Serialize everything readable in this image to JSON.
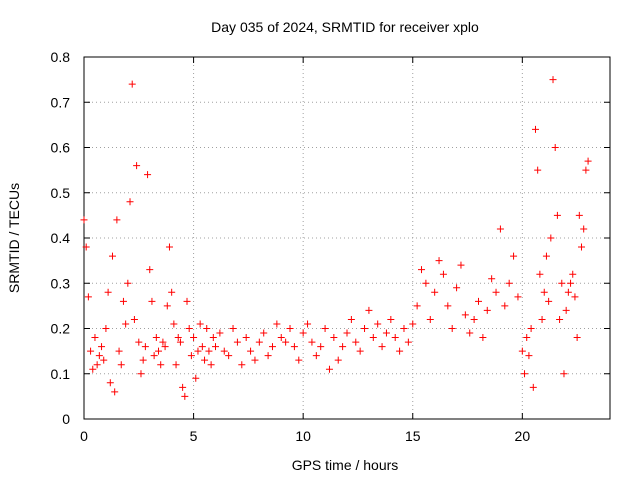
{
  "chart_data": {
    "type": "scatter",
    "title": "Day 035 of 2024, SRMTID for receiver xplo",
    "xlabel": "GPS time / hours",
    "ylabel": "SRMTID / TECUs",
    "xlim": [
      0,
      24
    ],
    "ylim": [
      0,
      0.8
    ],
    "xticks": [
      0,
      5,
      10,
      15,
      20
    ],
    "xtick_labels": [
      "0",
      "5",
      "10",
      "15",
      "20"
    ],
    "yticks": [
      0,
      0.1,
      0.2,
      0.3,
      0.4,
      0.5,
      0.6,
      0.7,
      0.8
    ],
    "ytick_labels": [
      "0",
      "0.1",
      "0.2",
      "0.3",
      "0.4",
      "0.5",
      "0.6",
      "0.7",
      "0.8"
    ],
    "grid": true,
    "marker": "plus",
    "color": "#ff0000",
    "series": [
      {
        "name": "SRMTID",
        "x": [
          0.0,
          0.1,
          0.2,
          0.3,
          0.4,
          0.5,
          0.6,
          0.7,
          0.8,
          0.9,
          1.0,
          1.1,
          1.2,
          1.3,
          1.4,
          1.5,
          1.6,
          1.7,
          1.8,
          1.9,
          2.0,
          2.1,
          2.2,
          2.3,
          2.4,
          2.5,
          2.6,
          2.7,
          2.8,
          2.9,
          3.0,
          3.1,
          3.2,
          3.3,
          3.4,
          3.5,
          3.6,
          3.7,
          3.8,
          3.9,
          4.0,
          4.1,
          4.2,
          4.3,
          4.4,
          4.5,
          4.6,
          4.7,
          4.8,
          4.9,
          5.0,
          5.1,
          5.2,
          5.3,
          5.4,
          5.5,
          5.6,
          5.7,
          5.8,
          5.9,
          6.0,
          6.2,
          6.4,
          6.6,
          6.8,
          7.0,
          7.2,
          7.4,
          7.6,
          7.8,
          8.0,
          8.2,
          8.4,
          8.6,
          8.8,
          9.0,
          9.2,
          9.4,
          9.6,
          9.8,
          10.0,
          10.2,
          10.4,
          10.6,
          10.8,
          11.0,
          11.2,
          11.4,
          11.6,
          11.8,
          12.0,
          12.2,
          12.4,
          12.6,
          12.8,
          13.0,
          13.2,
          13.4,
          13.6,
          13.8,
          14.0,
          14.2,
          14.4,
          14.6,
          14.8,
          15.0,
          15.2,
          15.4,
          15.6,
          15.8,
          16.0,
          16.2,
          16.4,
          16.6,
          16.8,
          17.0,
          17.2,
          17.4,
          17.6,
          17.8,
          18.0,
          18.2,
          18.4,
          18.6,
          18.8,
          19.0,
          19.2,
          19.4,
          19.6,
          19.8,
          20.0,
          20.1,
          20.2,
          20.3,
          20.4,
          20.5,
          20.6,
          20.7,
          20.8,
          20.9,
          21.0,
          21.1,
          21.2,
          21.3,
          21.4,
          21.5,
          21.6,
          21.7,
          21.8,
          21.9,
          22.0,
          22.1,
          22.2,
          22.3,
          22.4,
          22.5,
          22.6,
          22.7,
          22.8,
          22.9,
          23.0
        ],
        "y": [
          0.44,
          0.38,
          0.27,
          0.15,
          0.11,
          0.18,
          0.12,
          0.14,
          0.16,
          0.13,
          0.2,
          0.28,
          0.08,
          0.36,
          0.06,
          0.44,
          0.15,
          0.12,
          0.26,
          0.21,
          0.3,
          0.48,
          0.74,
          0.22,
          0.56,
          0.17,
          0.1,
          0.13,
          0.16,
          0.54,
          0.33,
          0.26,
          0.14,
          0.18,
          0.15,
          0.12,
          0.17,
          0.16,
          0.25,
          0.38,
          0.28,
          0.21,
          0.12,
          0.18,
          0.17,
          0.07,
          0.05,
          0.26,
          0.2,
          0.14,
          0.18,
          0.09,
          0.15,
          0.21,
          0.16,
          0.13,
          0.2,
          0.15,
          0.12,
          0.18,
          0.16,
          0.19,
          0.15,
          0.14,
          0.2,
          0.17,
          0.12,
          0.18,
          0.15,
          0.13,
          0.17,
          0.19,
          0.14,
          0.16,
          0.21,
          0.18,
          0.17,
          0.2,
          0.16,
          0.13,
          0.19,
          0.21,
          0.17,
          0.14,
          0.16,
          0.2,
          0.11,
          0.18,
          0.13,
          0.16,
          0.19,
          0.22,
          0.17,
          0.15,
          0.2,
          0.24,
          0.18,
          0.21,
          0.16,
          0.19,
          0.22,
          0.18,
          0.15,
          0.2,
          0.17,
          0.21,
          0.25,
          0.33,
          0.3,
          0.22,
          0.28,
          0.35,
          0.32,
          0.25,
          0.2,
          0.29,
          0.34,
          0.23,
          0.19,
          0.22,
          0.26,
          0.18,
          0.24,
          0.31,
          0.28,
          0.42,
          0.25,
          0.3,
          0.36,
          0.27,
          0.15,
          0.1,
          0.18,
          0.14,
          0.2,
          0.07,
          0.64,
          0.55,
          0.32,
          0.22,
          0.28,
          0.36,
          0.26,
          0.4,
          0.75,
          0.6,
          0.45,
          0.22,
          0.3,
          0.1,
          0.24,
          0.28,
          0.3,
          0.32,
          0.27,
          0.18,
          0.45,
          0.38,
          0.42,
          0.55,
          0.57
        ]
      }
    ]
  }
}
